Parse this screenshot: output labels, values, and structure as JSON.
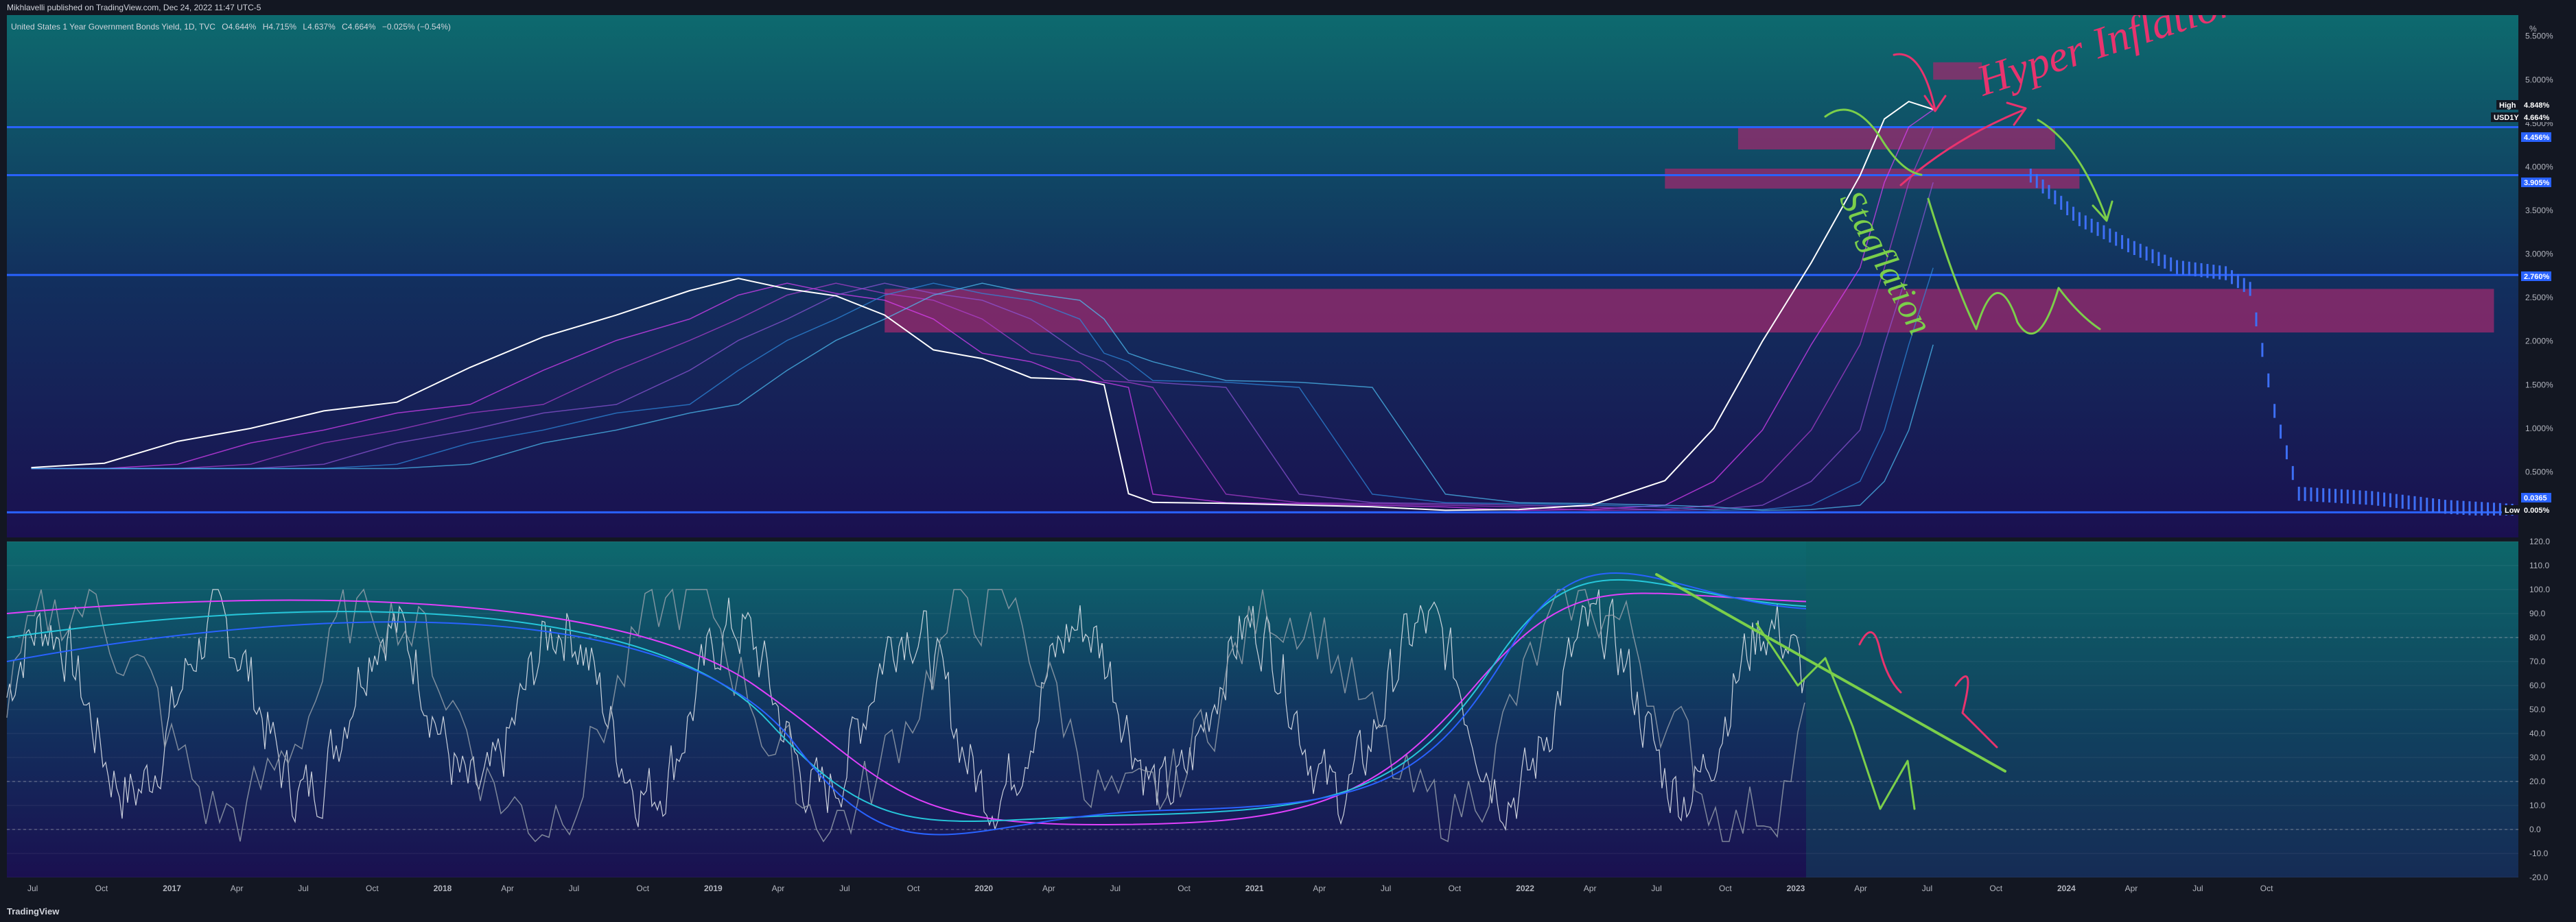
{
  "header": {
    "published": "Mikhlavelli published on TradingView.com, Dec 24, 2022 11:47 UTC-5"
  },
  "legend": {
    "symbol": "United States 1 Year Government Bonds Yield, 1D, TVC",
    "open": "O4.644%",
    "high": "H4.715%",
    "low": "L4.637%",
    "close": "C4.664%",
    "change": "−0.025% (−0.54%)"
  },
  "footer": {
    "brand": "TradingView"
  },
  "price_axis": {
    "unit": "%",
    "labels": [
      "5.500%",
      "5.000%",
      "4.500%",
      "4.000%",
      "3.500%",
      "3.000%",
      "2.500%",
      "2.000%",
      "1.500%",
      "1.000%",
      "0.500%"
    ],
    "tags": {
      "high_label": "High",
      "high_value": "4.848%",
      "symbol_label": "USD1Y",
      "symbol_value": "4.664%",
      "level_1": "4.456%",
      "level_2": "3.905%",
      "level_3": "2.760%",
      "level_4": "0.0365",
      "low_label": "Low",
      "low_value": "0.005%"
    }
  },
  "osc_axis": {
    "labels": [
      "120.0",
      "110.0",
      "100.0",
      "90.0",
      "80.0",
      "70.0",
      "60.0",
      "50.0",
      "40.0",
      "30.0",
      "20.0",
      "10.0",
      "0.0",
      "-10.0",
      "-20.0"
    ]
  },
  "time_axis": {
    "labels": [
      "Jul",
      "Oct",
      "2017",
      "Apr",
      "Jul",
      "Oct",
      "2018",
      "Apr",
      "Jul",
      "Oct",
      "2019",
      "Apr",
      "Jul",
      "Oct",
      "2020",
      "Apr",
      "Jul",
      "Oct",
      "2021",
      "Apr",
      "Jul",
      "Oct",
      "2022",
      "Apr",
      "Jul",
      "Oct",
      "2023",
      "Apr",
      "Jul",
      "Oct",
      "2024",
      "Apr",
      "Jul",
      "Oct"
    ]
  },
  "annotations": {
    "hyper": "Hyper Inflation",
    "stag": "Stagflation"
  },
  "colors": {
    "price_line": "#ffffff",
    "level_line": "#2962ff",
    "zone": "#9c2a6d",
    "projection": "#3d6ff5",
    "pink_drawing": "#e8336e",
    "green_drawing": "#7bcf4a"
  },
  "chart_data": {
    "type": "line",
    "title": "United States 1 Year Government Bonds Yield, 1D, TVC",
    "x_range": [
      "2016-05",
      "2024-12"
    ],
    "y_range": [
      0,
      5.6
    ],
    "series": [
      {
        "name": "USD1Y",
        "x": [
          "2016-06",
          "2016-09",
          "2016-12",
          "2017-03",
          "2017-06",
          "2017-09",
          "2017-12",
          "2018-03",
          "2018-06",
          "2018-09",
          "2018-11",
          "2019-01",
          "2019-03",
          "2019-05",
          "2019-07",
          "2019-09",
          "2019-11",
          "2020-01",
          "2020-02",
          "2020-03",
          "2020-04",
          "2020-07",
          "2020-10",
          "2021-01",
          "2021-04",
          "2021-07",
          "2021-10",
          "2022-01",
          "2022-03",
          "2022-05",
          "2022-07",
          "2022-09",
          "2022-10",
          "2022-11",
          "2022-12"
        ],
        "y": [
          0.55,
          0.6,
          0.85,
          1.0,
          1.2,
          1.3,
          1.7,
          2.05,
          2.3,
          2.58,
          2.72,
          2.6,
          2.52,
          2.3,
          1.9,
          1.8,
          1.58,
          1.56,
          1.5,
          0.25,
          0.15,
          0.14,
          0.12,
          0.1,
          0.06,
          0.07,
          0.12,
          0.4,
          1.0,
          2.0,
          2.9,
          3.9,
          4.55,
          4.75,
          4.66
        ]
      },
      {
        "name": "projection",
        "x": [
          "2023-04",
          "2023-06",
          "2023-08",
          "2023-10",
          "2023-12",
          "2024-01",
          "2024-02",
          "2024-03",
          "2024-06",
          "2024-09",
          "2024-12"
        ],
        "y": [
          3.9,
          3.4,
          3.1,
          2.85,
          2.78,
          2.6,
          1.2,
          0.25,
          0.2,
          0.1,
          0.05
        ]
      }
    ],
    "horizontal_levels": [
      4.456,
      3.905,
      2.76,
      0.0365
    ],
    "zones": [
      {
        "x": [
          "2022-12",
          "2023-02"
        ],
        "y": [
          5.0,
          5.2
        ]
      },
      {
        "x": [
          "2022-04",
          "2023-05"
        ],
        "y": [
          4.2,
          4.45
        ]
      },
      {
        "x": [
          "2022-01",
          "2023-06"
        ],
        "y": [
          3.75,
          3.98
        ]
      },
      {
        "x": [
          "2019-05",
          "2024-11"
        ],
        "y": [
          2.1,
          2.6
        ]
      }
    ],
    "oscillator": {
      "y_range": [
        -20,
        120
      ],
      "levels": [
        80,
        20,
        0
      ]
    }
  }
}
